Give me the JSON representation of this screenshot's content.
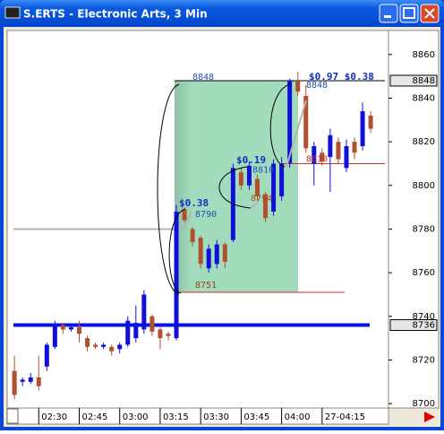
{
  "window_title": "S.ERTS - Electronic Arts, 3 Min",
  "chart_data": {
    "type": "candlestick",
    "up_color": "#1010d8",
    "down_color": "#b0502e",
    "open": [
      8715,
      8710,
      8710,
      8712,
      8717,
      8726,
      8736,
      8734,
      8735,
      8730,
      8727,
      8726,
      8726,
      8725,
      8727,
      8730,
      8734,
      8740,
      8734,
      8732,
      8730,
      8789,
      8780,
      8776,
      8762,
      8764,
      8773,
      8775,
      8806,
      8800,
      8803,
      8796,
      8788,
      8795,
      8810,
      8848,
      8841,
      8810,
      8815,
      8813,
      8820,
      8808,
      8820,
      8818,
      8832
    ],
    "close": [
      8704,
      8711,
      8712,
      8708,
      8727,
      8736,
      8734,
      8735,
      8732,
      8726,
      8726,
      8727,
      8724,
      8727,
      8738,
      8737,
      8750,
      8733,
      8730,
      8731,
      8788,
      8784,
      8774,
      8764,
      8771,
      8773,
      8765,
      8808,
      8800,
      8809,
      8795,
      8785,
      8810,
      8810,
      8848,
      8843,
      8817,
      8818,
      8811,
      8823,
      8812,
      8818,
      8815,
      8834,
      8826
    ],
    "high": [
      8722,
      8712,
      8714,
      8722,
      8728,
      8738,
      8737,
      8736,
      8738,
      8731,
      8728,
      8728,
      8727,
      8728,
      8740,
      8745,
      8752,
      8741,
      8735,
      8733,
      8791,
      8790,
      8781,
      8777,
      8773,
      8775,
      8774,
      8810,
      8808,
      8811,
      8805,
      8797,
      8812,
      8813,
      8849,
      8852,
      8846,
      8820,
      8817,
      8826,
      8822,
      8821,
      8822,
      8838,
      8834
    ],
    "low": [
      8702,
      8708,
      8709,
      8706,
      8715,
      8725,
      8732,
      8733,
      8728,
      8724,
      8725,
      8725,
      8722,
      8723,
      8726,
      8728,
      8732,
      8731,
      8725,
      8729,
      8729,
      8783,
      8772,
      8762,
      8760,
      8762,
      8762,
      8774,
      8798,
      8798,
      8793,
      8783,
      8786,
      8793,
      8808,
      8841,
      8815,
      8800,
      8809,
      8797,
      8810,
      8806,
      8812,
      8816,
      8824
    ],
    "xlim": [
      -0.9,
      46.2
    ],
    "xticks": [
      {
        "value": 3,
        "label": "02:30"
      },
      {
        "value": 8,
        "label": "02:45"
      },
      {
        "value": 13,
        "label": "03:00"
      },
      {
        "value": 18,
        "label": "03:15"
      },
      {
        "value": 23,
        "label": "03:30"
      },
      {
        "value": 28,
        "label": "03:45"
      },
      {
        "value": 33,
        "label": "04:00"
      },
      {
        "value": 38,
        "label": "27-04:15"
      }
    ],
    "ylim": [
      8698,
      8871
    ],
    "yticks": [
      8700,
      8720,
      8740,
      8760,
      8780,
      8800,
      8820,
      8840,
      8860
    ],
    "axis_markers": [
      8848,
      8736
    ],
    "zone": {
      "from": 8751,
      "to": 8848,
      "color": "#a3dcbd"
    },
    "hlines": [
      {
        "value": 8736,
        "color": "#0a14e6"
      },
      {
        "value": 8751,
        "color": "#c83232"
      },
      {
        "value": 8810,
        "color": "#c83232"
      },
      {
        "value": 8848,
        "color": "#000000"
      },
      {
        "value": 8780,
        "color": "#b4b4b4"
      }
    ],
    "price_labels": [
      {
        "value": 8848,
        "color": "#2050b0"
      },
      {
        "value": 8751,
        "color": "#a04020"
      },
      {
        "value": 8790,
        "color": "#2050b0"
      },
      {
        "value": 8810,
        "color": "#2050b0"
      },
      {
        "value": 8794,
        "color": "#a05020"
      },
      {
        "value": 8848,
        "color": "#2050b0"
      },
      {
        "value": 8810,
        "color": "#c03030"
      }
    ],
    "annotations": [
      "$0.38",
      "$0.19",
      "$0.97 $0.38"
    ]
  }
}
